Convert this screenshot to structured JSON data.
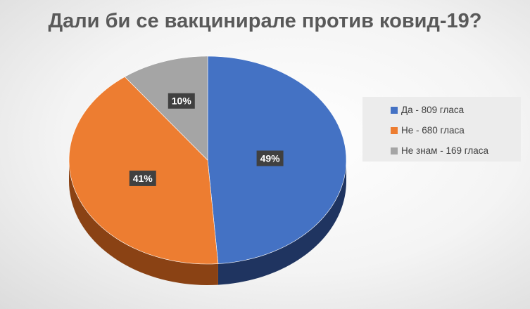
{
  "chart_data": {
    "type": "pie",
    "title": "Дали би се вакцинирале против ковид-19?",
    "categories": [
      "Да - 809 гласа",
      "Не - 680 гласа",
      "Не знам - 169 гласа"
    ],
    "values": [
      809,
      680,
      169
    ],
    "data_labels": [
      "49%",
      "41%",
      "10%"
    ],
    "colors": [
      "#4472C4",
      "#ED7D31",
      "#A5A5A5"
    ],
    "side_colors": [
      "#1F3460",
      "#8A4214",
      "#6B6B6B"
    ],
    "legend_position": "right"
  }
}
